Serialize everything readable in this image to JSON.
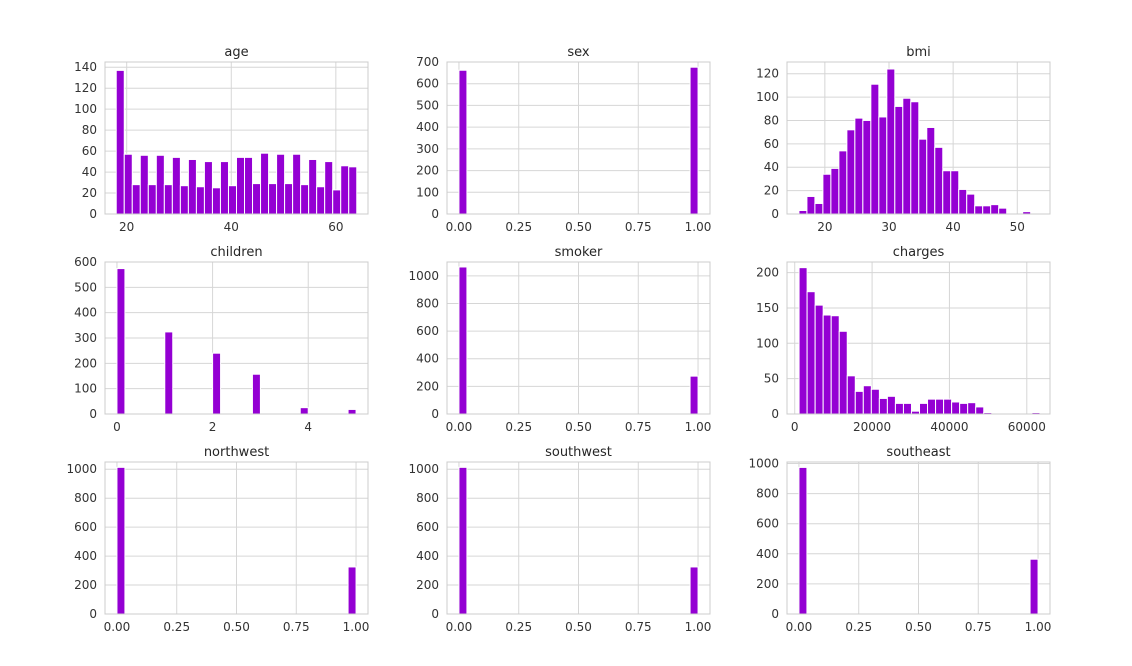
{
  "chart_data": [
    {
      "type": "bar",
      "title": "age",
      "ylim": [
        0,
        145
      ],
      "xlim": [
        15.85,
        66.15
      ],
      "yticks": [
        0,
        20,
        40,
        60,
        80,
        100,
        120,
        140
      ],
      "xticks": [
        {
          "v": 20,
          "label": "20"
        },
        {
          "v": 40,
          "label": "40"
        },
        {
          "v": 60,
          "label": "60"
        }
      ],
      "bin_start": 18,
      "bin_width": 1.5333,
      "values": [
        137,
        57,
        28,
        56,
        28,
        56,
        28,
        54,
        27,
        52,
        26,
        50,
        25,
        50,
        27,
        54,
        54,
        29,
        58,
        29,
        57,
        29,
        57,
        28,
        52,
        26,
        50,
        23,
        46,
        45
      ]
    },
    {
      "type": "bar",
      "title": "sex",
      "ylim": [
        0,
        700
      ],
      "xlim": [
        -0.05,
        1.05
      ],
      "yticks": [
        0,
        100,
        200,
        300,
        400,
        500,
        600,
        700
      ],
      "xticks": [
        {
          "v": 0,
          "label": "0.00"
        },
        {
          "v": 0.25,
          "label": "0.25"
        },
        {
          "v": 0.5,
          "label": "0.50"
        },
        {
          "v": 0.75,
          "label": "0.75"
        },
        {
          "v": 1,
          "label": "1.00"
        }
      ],
      "bin_start": 0,
      "bin_width": 0.03333,
      "bars": [
        {
          "x": 0,
          "v": 662
        },
        {
          "x": 0.96667,
          "v": 676
        }
      ]
    },
    {
      "type": "bar",
      "title": "bmi",
      "ylim": [
        0,
        130
      ],
      "xlim": [
        14.1,
        55.1
      ],
      "yticks": [
        0,
        20,
        40,
        60,
        80,
        100,
        120
      ],
      "xticks": [
        {
          "v": 20,
          "label": "20"
        },
        {
          "v": 30,
          "label": "30"
        },
        {
          "v": 40,
          "label": "40"
        },
        {
          "v": 50,
          "label": "50"
        }
      ],
      "bin_start": 15.96,
      "bin_width": 1.2457,
      "values": [
        3,
        15,
        9,
        34,
        39,
        54,
        72,
        82,
        80,
        111,
        83,
        124,
        92,
        99,
        96,
        64,
        74,
        57,
        37,
        37,
        21,
        17,
        7,
        7,
        8,
        5,
        0,
        0,
        2,
        0
      ]
    },
    {
      "type": "bar",
      "title": "children",
      "ylim": [
        0,
        600
      ],
      "xlim": [
        -0.25,
        5.25
      ],
      "yticks": [
        0,
        100,
        200,
        300,
        400,
        500,
        600
      ],
      "xticks": [
        {
          "v": 0,
          "label": "0"
        },
        {
          "v": 2,
          "label": "2"
        },
        {
          "v": 4,
          "label": "4"
        }
      ],
      "bin_start": 0,
      "bin_width": 0.16667,
      "bars": [
        {
          "x": 0,
          "v": 574
        },
        {
          "x": 1,
          "v": 324
        },
        {
          "x": 2,
          "v": 240
        },
        {
          "x": 2.8333,
          "v": 157
        },
        {
          "x": 3.8333,
          "v": 25
        },
        {
          "x": 4.8333,
          "v": 18
        }
      ]
    },
    {
      "type": "bar",
      "title": "smoker",
      "ylim": [
        0,
        1100
      ],
      "xlim": [
        -0.05,
        1.05
      ],
      "yticks": [
        0,
        200,
        400,
        600,
        800,
        1000
      ],
      "xticks": [
        {
          "v": 0,
          "label": "0.00"
        },
        {
          "v": 0.25,
          "label": "0.25"
        },
        {
          "v": 0.5,
          "label": "0.50"
        },
        {
          "v": 0.75,
          "label": "0.75"
        },
        {
          "v": 1,
          "label": "1.00"
        }
      ],
      "bin_start": 0,
      "bin_width": 0.03333,
      "bars": [
        {
          "x": 0,
          "v": 1064
        },
        {
          "x": 0.96667,
          "v": 274
        }
      ]
    },
    {
      "type": "bar",
      "title": "charges",
      "ylim": [
        0,
        215
      ],
      "xlim": [
        -2000,
        66000
      ],
      "yticks": [
        0,
        50,
        100,
        150,
        200
      ],
      "xticks": [
        {
          "v": 0,
          "label": "0"
        },
        {
          "v": 20000,
          "label": "20000"
        },
        {
          "v": 40000,
          "label": "40000"
        },
        {
          "v": 60000,
          "label": "60000"
        }
      ],
      "bin_start": 1122,
      "bin_width": 2076,
      "values": [
        207,
        173,
        154,
        140,
        139,
        117,
        54,
        32,
        40,
        35,
        22,
        25,
        15,
        15,
        4,
        15,
        21,
        21,
        21,
        17,
        15,
        16,
        10,
        2,
        0,
        0,
        0,
        0,
        0,
        2
      ]
    },
    {
      "type": "bar",
      "title": "northwest",
      "ylim": [
        0,
        1050
      ],
      "xlim": [
        -0.05,
        1.05
      ],
      "yticks": [
        0,
        200,
        400,
        600,
        800,
        1000
      ],
      "xticks": [
        {
          "v": 0,
          "label": "0.00"
        },
        {
          "v": 0.25,
          "label": "0.25"
        },
        {
          "v": 0.5,
          "label": "0.50"
        },
        {
          "v": 0.75,
          "label": "0.75"
        },
        {
          "v": 1,
          "label": "1.00"
        }
      ],
      "bin_start": 0,
      "bin_width": 0.03333,
      "bars": [
        {
          "x": 0,
          "v": 1013
        },
        {
          "x": 0.96667,
          "v": 325
        }
      ]
    },
    {
      "type": "bar",
      "title": "southwest",
      "ylim": [
        0,
        1050
      ],
      "xlim": [
        -0.05,
        1.05
      ],
      "yticks": [
        0,
        200,
        400,
        600,
        800,
        1000
      ],
      "xticks": [
        {
          "v": 0,
          "label": "0.00"
        },
        {
          "v": 0.25,
          "label": "0.25"
        },
        {
          "v": 0.5,
          "label": "0.50"
        },
        {
          "v": 0.75,
          "label": "0.75"
        },
        {
          "v": 1,
          "label": "1.00"
        }
      ],
      "bin_start": 0,
      "bin_width": 0.03333,
      "bars": [
        {
          "x": 0,
          "v": 1013
        },
        {
          "x": 0.96667,
          "v": 325
        }
      ]
    },
    {
      "type": "bar",
      "title": "southeast",
      "ylim": [
        0,
        1010
      ],
      "xlim": [
        -0.05,
        1.05
      ],
      "yticks": [
        0,
        200,
        400,
        600,
        800,
        1000
      ],
      "xticks": [
        {
          "v": 0,
          "label": "0.00"
        },
        {
          "v": 0.25,
          "label": "0.25"
        },
        {
          "v": 0.5,
          "label": "0.50"
        },
        {
          "v": 0.75,
          "label": "0.75"
        },
        {
          "v": 1,
          "label": "1.00"
        }
      ],
      "bin_start": 0,
      "bin_width": 0.03333,
      "bars": [
        {
          "x": 0,
          "v": 974
        },
        {
          "x": 0.96667,
          "v": 364
        }
      ]
    }
  ],
  "colors": {
    "bar": "#9400D3",
    "grid": "#d6d6d6",
    "frame": "#cccccc",
    "text": "#333333"
  }
}
